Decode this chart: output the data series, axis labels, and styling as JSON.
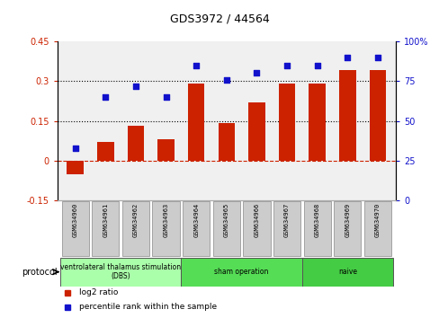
{
  "title": "GDS3972 / 44564",
  "samples": [
    "GSM634960",
    "GSM634961",
    "GSM634962",
    "GSM634963",
    "GSM634964",
    "GSM634965",
    "GSM634966",
    "GSM634967",
    "GSM634968",
    "GSM634969",
    "GSM634970"
  ],
  "log2_ratio": [
    -0.05,
    0.07,
    0.13,
    0.08,
    0.29,
    0.14,
    0.22,
    0.29,
    0.29,
    0.34,
    0.34
  ],
  "percentile_rank": [
    33,
    65,
    72,
    65,
    85,
    76,
    80,
    85,
    85,
    90,
    90
  ],
  "ylim_left": [
    -0.15,
    0.45
  ],
  "ylim_right": [
    0,
    100
  ],
  "yticks_left": [
    -0.15,
    0.0,
    0.15,
    0.3,
    0.45
  ],
  "yticks_left_labels": [
    "-0.15",
    "0",
    "0.15",
    "0.3",
    "0.45"
  ],
  "yticks_right": [
    0,
    25,
    50,
    75,
    100
  ],
  "yticks_right_labels": [
    "0",
    "25",
    "50",
    "75",
    "100%"
  ],
  "hlines": [
    0.15,
    0.3
  ],
  "bar_color": "#cc2200",
  "scatter_color": "#1111cc",
  "zero_line_color": "#cc2200",
  "plot_bg": "#f0f0f0",
  "groups": [
    {
      "label": "ventrolateral thalamus stimulation\n(DBS)",
      "start": 0,
      "end": 3,
      "color": "#aaffaa"
    },
    {
      "label": "sham operation",
      "start": 4,
      "end": 7,
      "color": "#55dd55"
    },
    {
      "label": "naive",
      "start": 8,
      "end": 10,
      "color": "#44cc44"
    }
  ],
  "protocol_label": "protocol",
  "legend_items": [
    {
      "label": "log2 ratio",
      "color": "#cc2200"
    },
    {
      "label": "percentile rank within the sample",
      "color": "#1111cc"
    }
  ]
}
